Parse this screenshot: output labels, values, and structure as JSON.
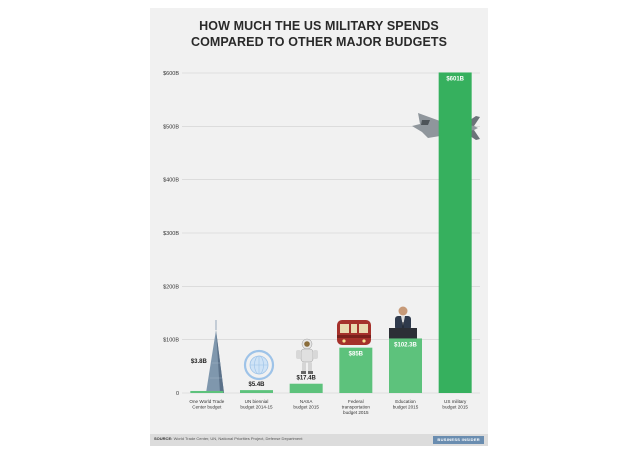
{
  "title": [
    "HOW MUCH THE US MILITARY SPENDS",
    "COMPARED TO OTHER MAJOR BUDGETS"
  ],
  "source_label": "SOURCE:",
  "source_text": "World Trade Center, UN, National Priorities Project, Defense Department",
  "brand": "BUSINESS INSIDER",
  "colors": {
    "bar": "#5dc27c",
    "bar_military": "#36b05e",
    "grid": "#cfcfcf",
    "label_inside": "#ffffff",
    "label_outside": "#222222"
  },
  "chart_data": {
    "type": "bar",
    "title": "HOW MUCH THE US MILITARY SPENDS COMPARED TO OTHER MAJOR BUDGETS",
    "xlabel": "",
    "ylabel": "",
    "ylim": [
      0,
      600
    ],
    "y_ticks": [
      0,
      100,
      200,
      300,
      400,
      500,
      600
    ],
    "y_tick_labels": [
      "0",
      "$100B",
      "$200B",
      "$300B",
      "$400B",
      "$500B",
      "$600B"
    ],
    "grid": true,
    "categories": [
      [
        "One World Trade",
        "Center budget"
      ],
      [
        "UN biennial",
        "budget 2014-15"
      ],
      [
        "NASA",
        "budget 2015"
      ],
      [
        "Federal",
        "transportation",
        "budget 2015"
      ],
      [
        "Education",
        "budget 2015"
      ],
      [
        "US military",
        "budget 2015"
      ]
    ],
    "values": [
      3.8,
      5.4,
      17.4,
      85,
      102.3,
      601
    ],
    "value_labels": [
      "$3.8B",
      "$5.4B",
      "$17.4B",
      "$85B",
      "$102.3B",
      "$601B"
    ],
    "icons": [
      "skyscraper-icon",
      "un-emblem-icon",
      "astronaut-icon",
      "subway-train-icon",
      "speaker-at-podium-icon",
      "fighter-jet-icon"
    ]
  }
}
